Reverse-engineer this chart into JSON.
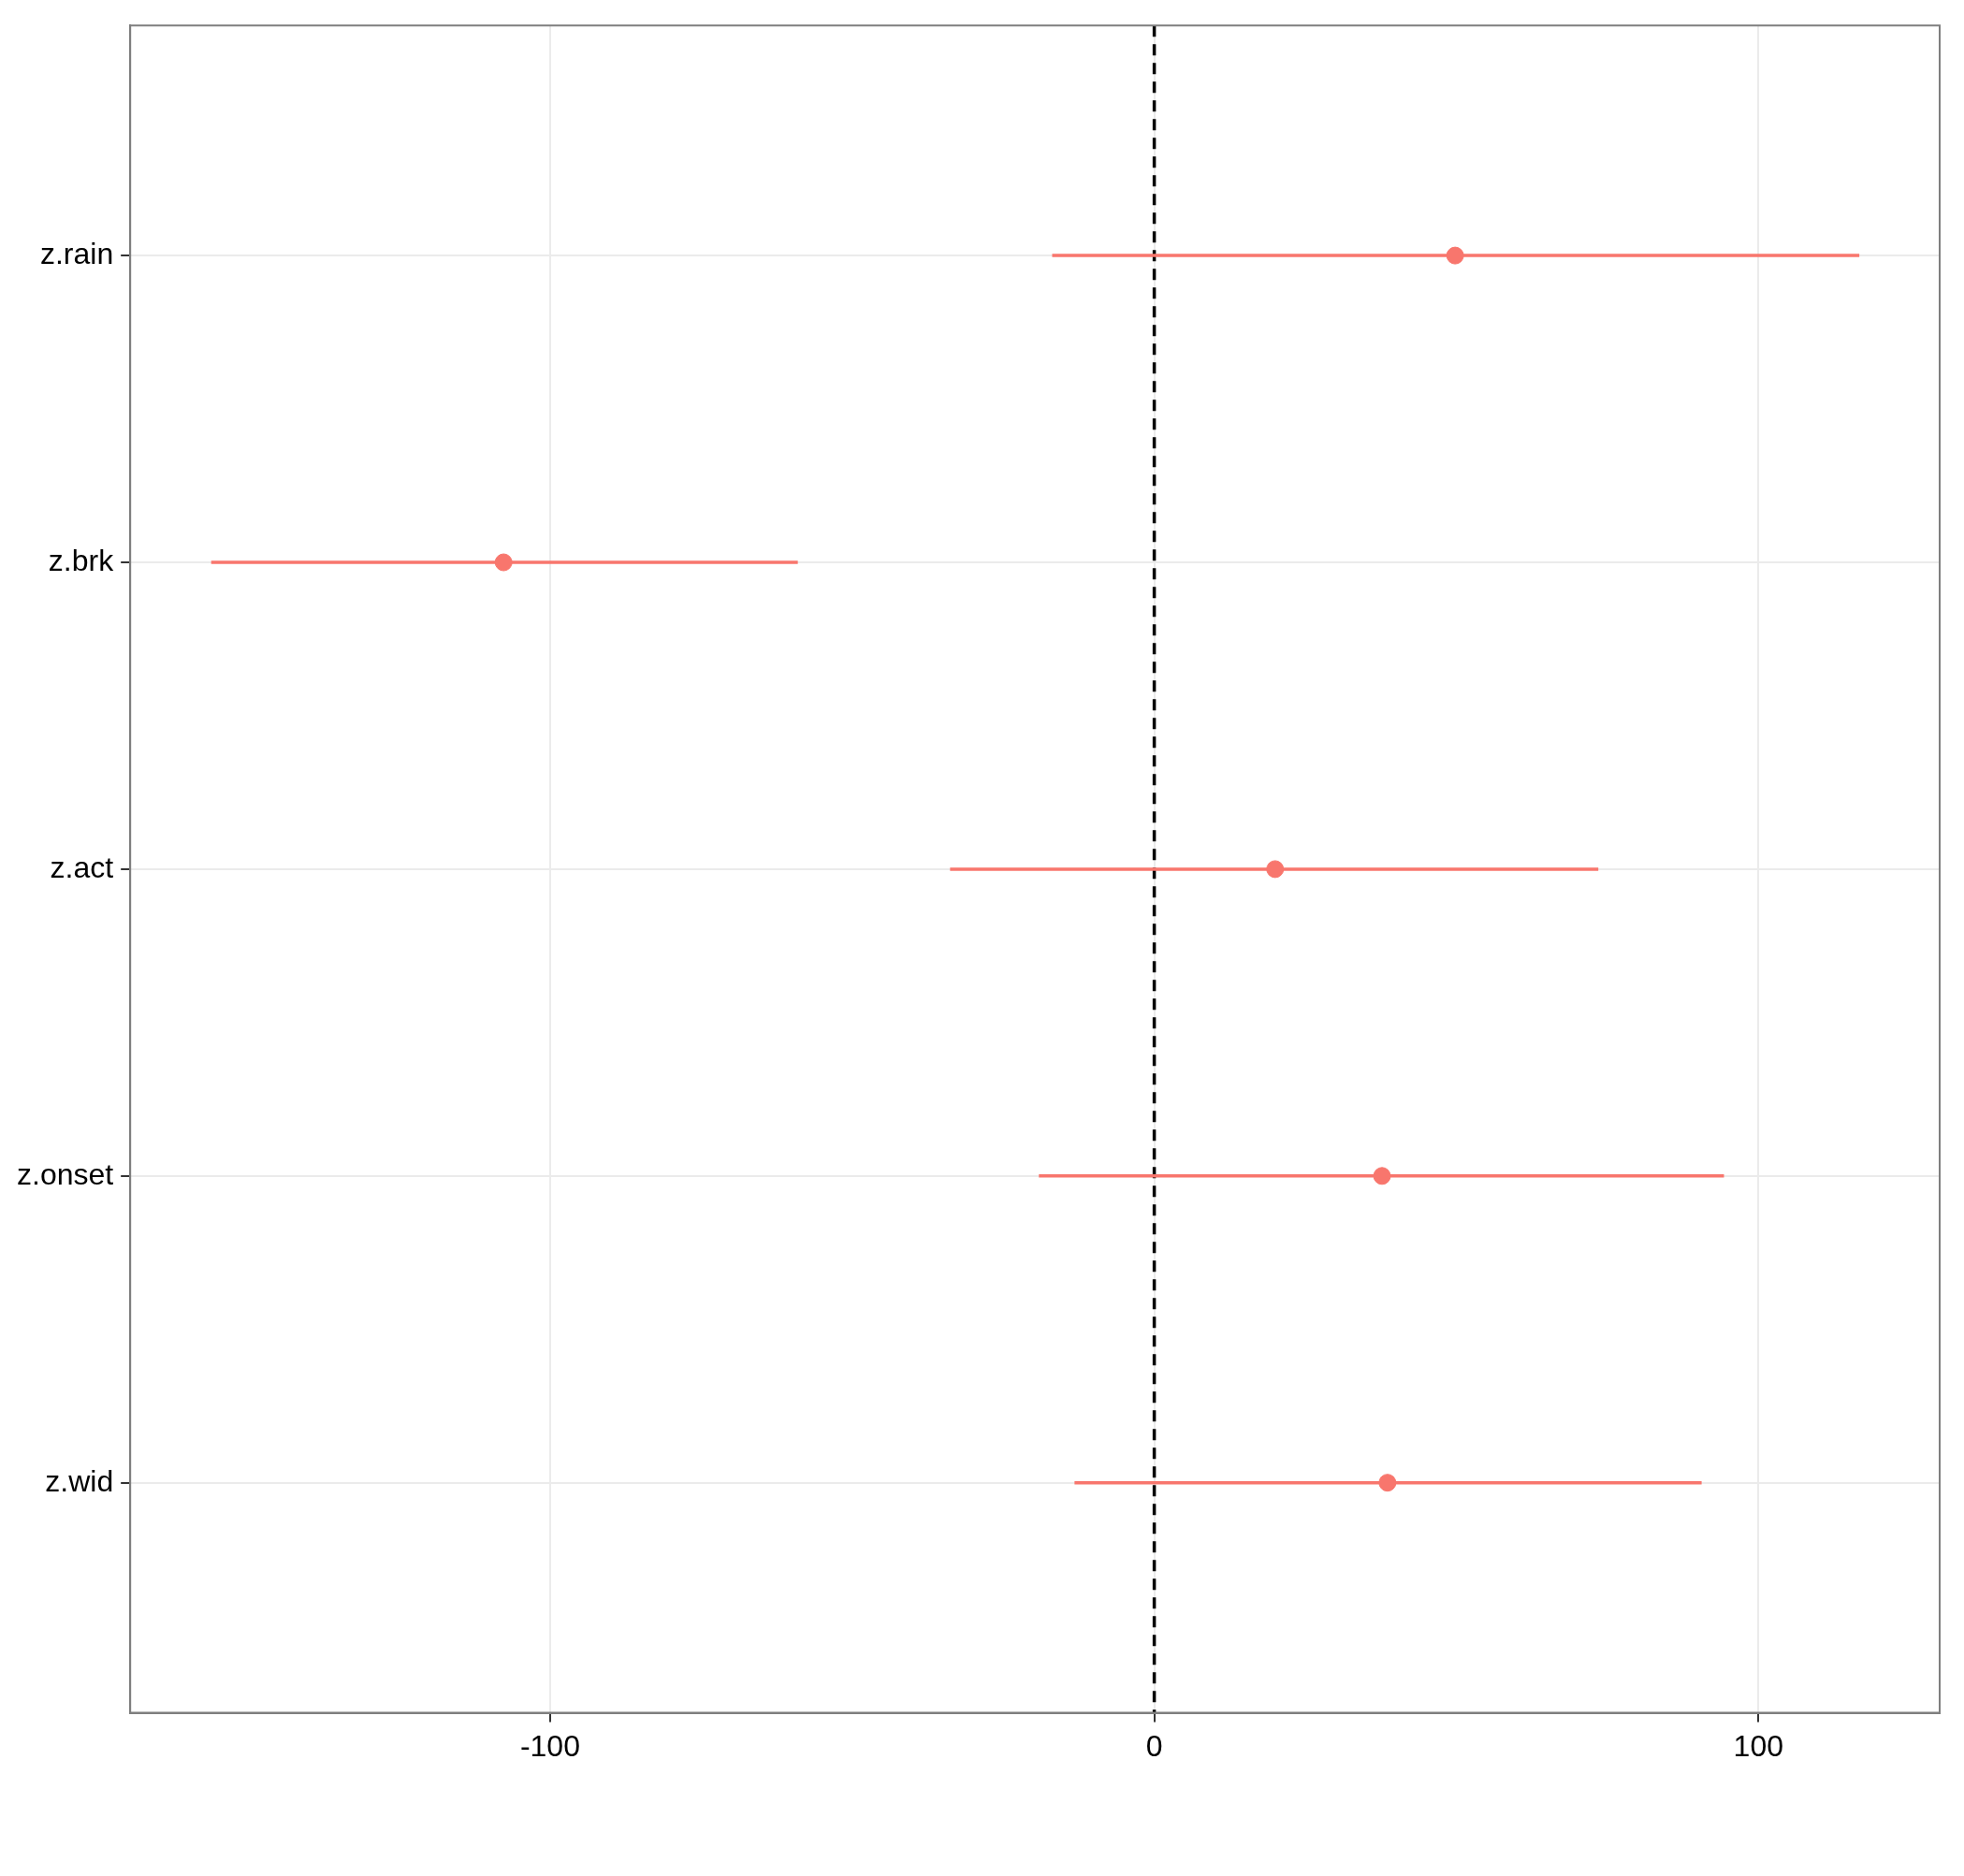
{
  "chart_data": {
    "type": "scatter",
    "orientation": "horizontal",
    "categories": [
      "z.rain",
      "z.brk",
      "z.act",
      "z.onset",
      "z.wid"
    ],
    "values": [
      49.8,
      -107.7,
      20.0,
      37.7,
      38.6
    ],
    "errors": [
      [
        -16.9,
        116.7
      ],
      [
        -156.1,
        -59.0
      ],
      [
        -33.8,
        73.5
      ],
      [
        -19.1,
        94.3
      ],
      [
        -13.2,
        90.6
      ]
    ],
    "color": "#f8766d",
    "marker": "circle",
    "xlim": [
      -169.5,
      130
    ],
    "xticks": [
      -100,
      0,
      100
    ],
    "grid": true,
    "ref_lines": [
      {
        "axis": "x",
        "value": 0,
        "color": "#000000",
        "line_style": "dashed"
      }
    ]
  }
}
